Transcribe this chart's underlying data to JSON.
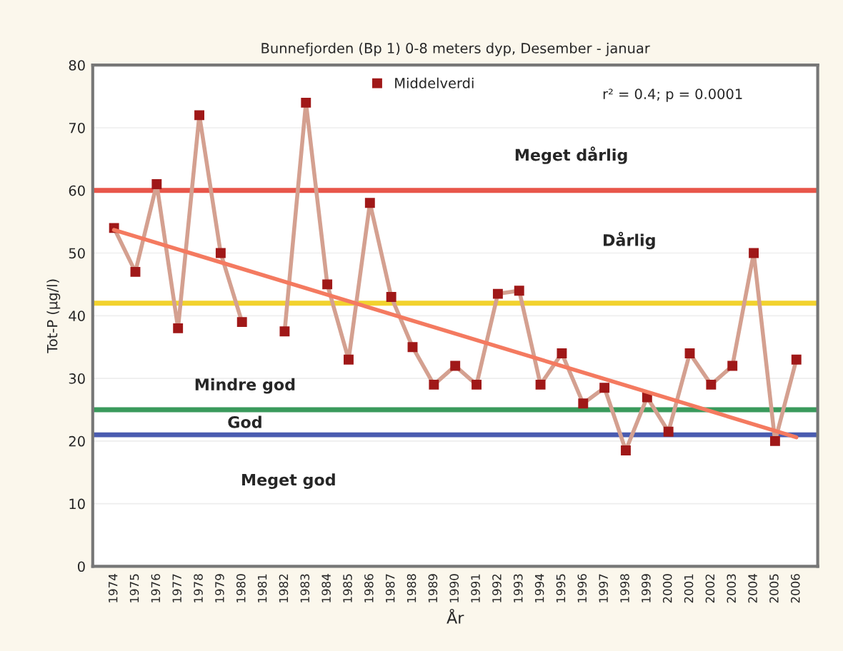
{
  "chart_data": {
    "type": "line",
    "title": "Bunnefjorden (Bp 1) 0-8 meters dyp, Desember - januar",
    "xlabel": "År",
    "ylabel": "Tot-P (µg/l)",
    "categories": [
      "1974",
      "1975",
      "1976",
      "1977",
      "1978",
      "1979",
      "1980",
      "1981",
      "1982",
      "1983",
      "1984",
      "1985",
      "1986",
      "1987",
      "1988",
      "1989",
      "1990",
      "1991",
      "1992",
      "1993",
      "1994",
      "1995",
      "1996",
      "1997",
      "1998",
      "1999",
      "2000",
      "2001",
      "2002",
      "2003",
      "2004",
      "2005",
      "2006"
    ],
    "series": [
      {
        "name": "Middelverdi",
        "color": "#d4a090",
        "marker": "square",
        "values": [
          54,
          47,
          61,
          38,
          72,
          50,
          39,
          null,
          37.5,
          74,
          45,
          33,
          58,
          43,
          35,
          29,
          32,
          29,
          43.5,
          44,
          29,
          34,
          26,
          28.5,
          18.5,
          27,
          21.5,
          34,
          29,
          32,
          50,
          20,
          33
        ]
      },
      {
        "type": "line",
        "color": "#f47a60",
        "values": [
          53.7,
          null,
          null,
          null,
          null,
          null,
          null,
          null,
          null,
          null,
          null,
          null,
          null,
          null,
          null,
          null,
          null,
          null,
          null,
          null,
          null,
          null,
          null,
          null,
          null,
          null,
          null,
          null,
          null,
          null,
          null,
          null,
          20.6
        ]
      }
    ],
    "ylim": [
      0,
      80
    ],
    "yticks": [
      0,
      10,
      20,
      30,
      40,
      50,
      60,
      70,
      80
    ],
    "grid": "y",
    "legend": "top",
    "ref_lines": [
      {
        "axis": "y",
        "value": 60,
        "color": "#e8564a"
      },
      {
        "axis": "y",
        "value": 42,
        "color": "#f2d22e"
      },
      {
        "axis": "y",
        "value": 25,
        "color": "#3a9a5c"
      },
      {
        "axis": "y",
        "value": 21,
        "color": "#4a5cb0"
      }
    ],
    "annotations": [
      "r² = 0.4; p = 0.0001",
      "Meget dårlig",
      "Dårlig",
      "Mindre god",
      "God",
      "Meget god"
    ]
  }
}
